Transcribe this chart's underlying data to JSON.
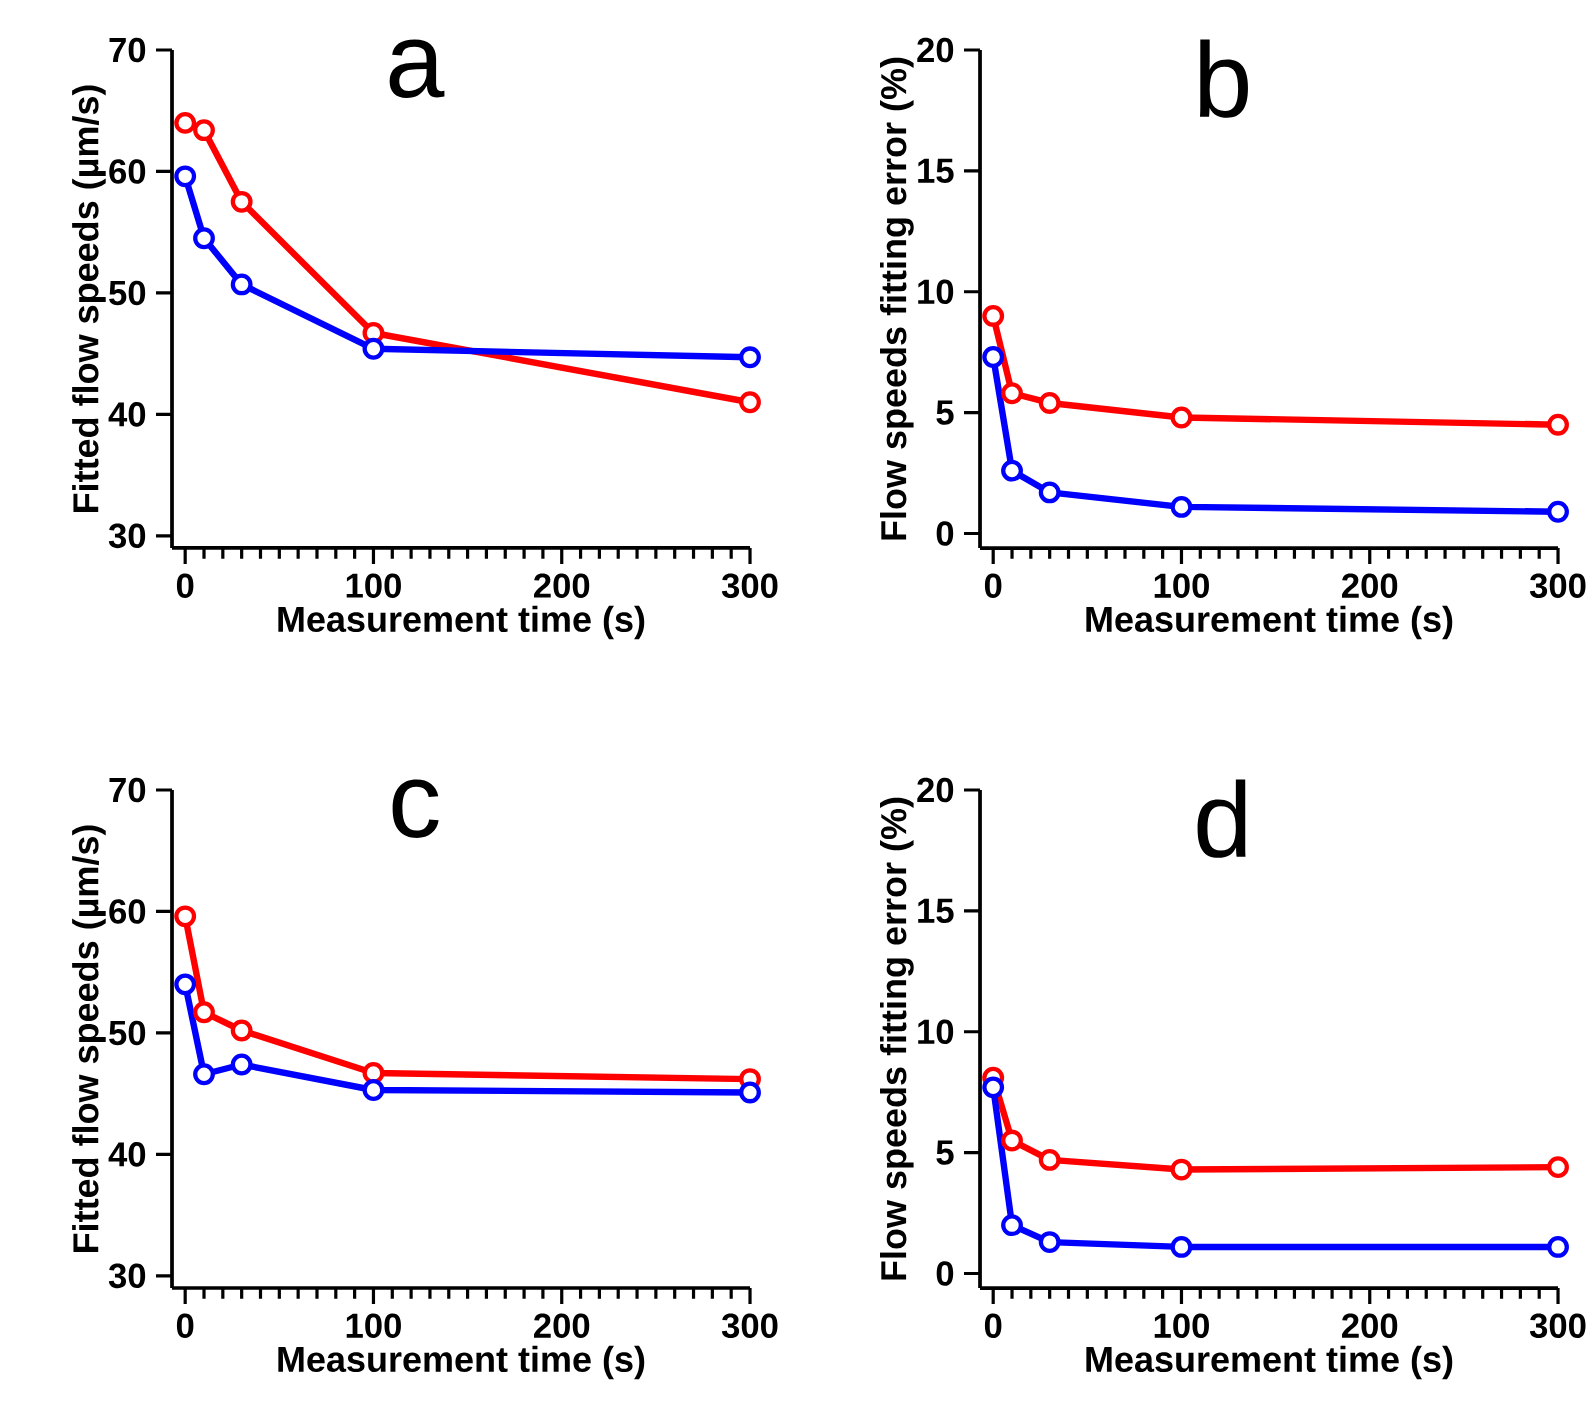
{
  "chart_data": [
    {
      "type": "line",
      "annotations": [
        "a"
      ],
      "xlabel": "Measurement time (s)",
      "ylabel": "Fitted flow speeds (µm/s)",
      "x": [
        0,
        10,
        30,
        100,
        300
      ],
      "marker": "circle",
      "line_style": "solid",
      "grid": false,
      "xlim": [
        -7,
        300
      ],
      "ylim": [
        29,
        70
      ],
      "yticks": [
        30,
        40,
        50,
        60,
        70
      ],
      "xticks": [
        0,
        {
          "value": 10,
          "label": null
        },
        {
          "value": 20,
          "label": null
        },
        {
          "value": 30,
          "label": null
        },
        {
          "value": 40,
          "label": null
        },
        {
          "value": 50,
          "label": null
        },
        {
          "value": 60,
          "label": null
        },
        {
          "value": 70,
          "label": null
        },
        {
          "value": 80,
          "label": null
        },
        {
          "value": 90,
          "label": null
        },
        100,
        {
          "value": 110,
          "label": null
        },
        {
          "value": 120,
          "label": null
        },
        {
          "value": 130,
          "label": null
        },
        {
          "value": 140,
          "label": null
        },
        {
          "value": 150,
          "label": null
        },
        {
          "value": 160,
          "label": null
        },
        {
          "value": 170,
          "label": null
        },
        {
          "value": 180,
          "label": null
        },
        {
          "value": 190,
          "label": null
        },
        200,
        {
          "value": 210,
          "label": null
        },
        {
          "value": 220,
          "label": null
        },
        {
          "value": 230,
          "label": null
        },
        {
          "value": 240,
          "label": null
        },
        {
          "value": 250,
          "label": null
        },
        {
          "value": 260,
          "label": null
        },
        {
          "value": 270,
          "label": null
        },
        {
          "value": 280,
          "label": null
        },
        {
          "value": 290,
          "label": null
        },
        300
      ],
      "series": [
        {
          "color": "#ff0000",
          "values": [
            64.0,
            63.4,
            57.5,
            46.7,
            41.0
          ]
        },
        {
          "color": "#0000ff",
          "values": [
            59.6,
            54.5,
            50.7,
            45.4,
            44.7
          ]
        }
      ]
    },
    {
      "type": "line",
      "annotations": [
        "b"
      ],
      "xlabel": "Measurement time (s)",
      "ylabel": "Flow speeds fitting error (%)",
      "x": [
        0,
        10,
        30,
        100,
        300
      ],
      "marker": "circle",
      "line_style": "solid",
      "grid": false,
      "xlim": [
        -7,
        300
      ],
      "ylim": [
        -0.6,
        20
      ],
      "yticks": [
        0,
        5,
        10,
        15,
        20
      ],
      "xticks": [
        0,
        {
          "value": 10,
          "label": null
        },
        {
          "value": 20,
          "label": null
        },
        {
          "value": 30,
          "label": null
        },
        {
          "value": 40,
          "label": null
        },
        {
          "value": 50,
          "label": null
        },
        {
          "value": 60,
          "label": null
        },
        {
          "value": 70,
          "label": null
        },
        {
          "value": 80,
          "label": null
        },
        {
          "value": 90,
          "label": null
        },
        100,
        {
          "value": 110,
          "label": null
        },
        {
          "value": 120,
          "label": null
        },
        {
          "value": 130,
          "label": null
        },
        {
          "value": 140,
          "label": null
        },
        {
          "value": 150,
          "label": null
        },
        {
          "value": 160,
          "label": null
        },
        {
          "value": 170,
          "label": null
        },
        {
          "value": 180,
          "label": null
        },
        {
          "value": 190,
          "label": null
        },
        200,
        {
          "value": 210,
          "label": null
        },
        {
          "value": 220,
          "label": null
        },
        {
          "value": 230,
          "label": null
        },
        {
          "value": 240,
          "label": null
        },
        {
          "value": 250,
          "label": null
        },
        {
          "value": 260,
          "label": null
        },
        {
          "value": 270,
          "label": null
        },
        {
          "value": 280,
          "label": null
        },
        {
          "value": 290,
          "label": null
        },
        300
      ],
      "series": [
        {
          "color": "#ff0000",
          "values": [
            9.0,
            5.8,
            5.4,
            4.8,
            4.5
          ]
        },
        {
          "color": "#0000ff",
          "values": [
            7.3,
            2.6,
            1.7,
            1.1,
            0.9
          ]
        }
      ]
    },
    {
      "type": "line",
      "annotations": [
        "c"
      ],
      "xlabel": "Measurement time (s)",
      "ylabel": "Fitted flow speeds (µm/s)",
      "x": [
        0,
        10,
        30,
        100,
        300
      ],
      "marker": "circle",
      "line_style": "solid",
      "grid": false,
      "xlim": [
        -7,
        300
      ],
      "ylim": [
        29,
        70
      ],
      "yticks": [
        30,
        40,
        50,
        60,
        70
      ],
      "xticks": [
        0,
        {
          "value": 10,
          "label": null
        },
        {
          "value": 20,
          "label": null
        },
        {
          "value": 30,
          "label": null
        },
        {
          "value": 40,
          "label": null
        },
        {
          "value": 50,
          "label": null
        },
        {
          "value": 60,
          "label": null
        },
        {
          "value": 70,
          "label": null
        },
        {
          "value": 80,
          "label": null
        },
        {
          "value": 90,
          "label": null
        },
        100,
        {
          "value": 110,
          "label": null
        },
        {
          "value": 120,
          "label": null
        },
        {
          "value": 130,
          "label": null
        },
        {
          "value": 140,
          "label": null
        },
        {
          "value": 150,
          "label": null
        },
        {
          "value": 160,
          "label": null
        },
        {
          "value": 170,
          "label": null
        },
        {
          "value": 180,
          "label": null
        },
        {
          "value": 190,
          "label": null
        },
        200,
        {
          "value": 210,
          "label": null
        },
        {
          "value": 220,
          "label": null
        },
        {
          "value": 230,
          "label": null
        },
        {
          "value": 240,
          "label": null
        },
        {
          "value": 250,
          "label": null
        },
        {
          "value": 260,
          "label": null
        },
        {
          "value": 270,
          "label": null
        },
        {
          "value": 280,
          "label": null
        },
        {
          "value": 290,
          "label": null
        },
        300
      ],
      "series": [
        {
          "color": "#ff0000",
          "values": [
            59.6,
            51.7,
            50.2,
            46.7,
            46.2
          ]
        },
        {
          "color": "#0000ff",
          "values": [
            54.0,
            46.6,
            47.4,
            45.3,
            45.1
          ]
        }
      ]
    },
    {
      "type": "line",
      "annotations": [
        "d"
      ],
      "xlabel": "Measurement time (s)",
      "ylabel": "Flow speeds fitting error (%)",
      "x": [
        0,
        10,
        30,
        100,
        300
      ],
      "marker": "circle",
      "line_style": "solid",
      "grid": false,
      "xlim": [
        -7,
        300
      ],
      "ylim": [
        -0.6,
        20
      ],
      "yticks": [
        0,
        5,
        10,
        15,
        20
      ],
      "xticks": [
        0,
        {
          "value": 10,
          "label": null
        },
        {
          "value": 20,
          "label": null
        },
        {
          "value": 30,
          "label": null
        },
        {
          "value": 40,
          "label": null
        },
        {
          "value": 50,
          "label": null
        },
        {
          "value": 60,
          "label": null
        },
        {
          "value": 70,
          "label": null
        },
        {
          "value": 80,
          "label": null
        },
        {
          "value": 90,
          "label": null
        },
        100,
        {
          "value": 110,
          "label": null
        },
        {
          "value": 120,
          "label": null
        },
        {
          "value": 130,
          "label": null
        },
        {
          "value": 140,
          "label": null
        },
        {
          "value": 150,
          "label": null
        },
        {
          "value": 160,
          "label": null
        },
        {
          "value": 170,
          "label": null
        },
        {
          "value": 180,
          "label": null
        },
        {
          "value": 190,
          "label": null
        },
        200,
        {
          "value": 210,
          "label": null
        },
        {
          "value": 220,
          "label": null
        },
        {
          "value": 230,
          "label": null
        },
        {
          "value": 240,
          "label": null
        },
        {
          "value": 250,
          "label": null
        },
        {
          "value": 260,
          "label": null
        },
        {
          "value": 270,
          "label": null
        },
        {
          "value": 280,
          "label": null
        },
        {
          "value": 290,
          "label": null
        },
        300
      ],
      "series": [
        {
          "color": "#ff0000",
          "values": [
            8.1,
            5.5,
            4.7,
            4.3,
            4.4
          ]
        },
        {
          "color": "#0000ff",
          "values": [
            7.7,
            2.0,
            1.3,
            1.1,
            1.1
          ]
        }
      ]
    }
  ]
}
